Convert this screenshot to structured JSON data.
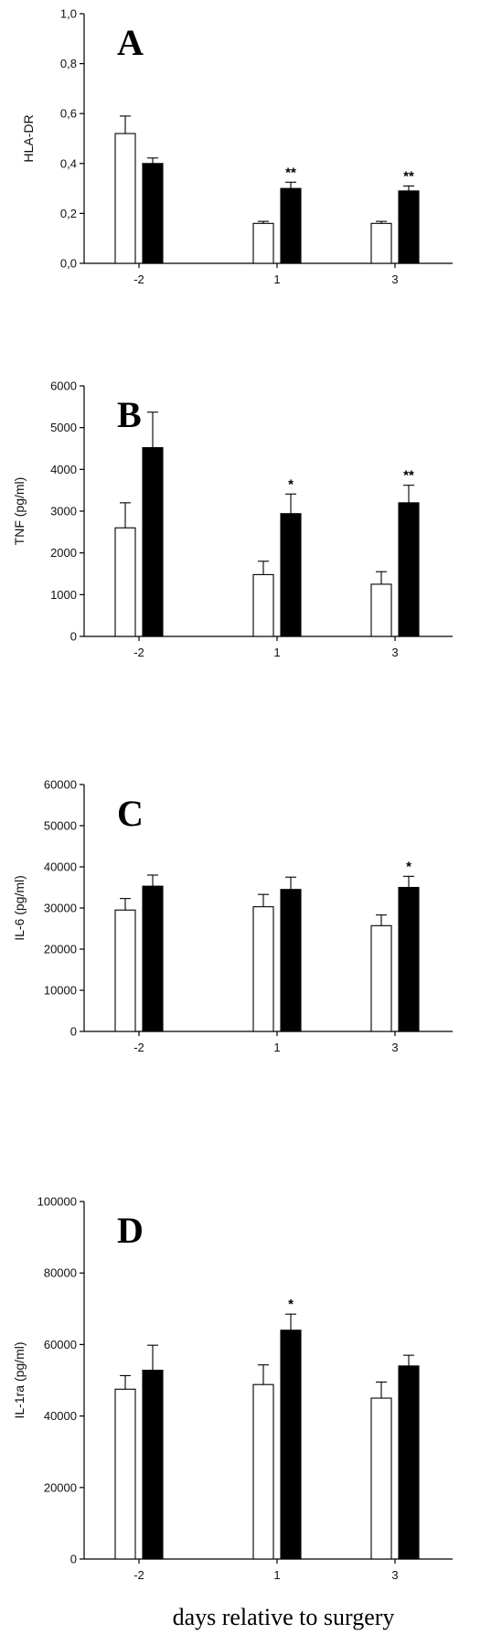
{
  "chart_data": [
    {
      "type": "bar",
      "panel_label": "A",
      "categories": [
        "-2",
        "1",
        "3"
      ],
      "ylabel": "HLA-DR",
      "ylim": [
        0,
        1.0
      ],
      "yticks": [
        "0,0",
        "0,2",
        "0,4",
        "0,6",
        "0,8",
        "1,0"
      ],
      "series": [
        {
          "style": "open",
          "values": [
            0.52,
            0.16,
            0.16
          ],
          "errors": [
            0.07,
            0.008,
            0.008
          ]
        },
        {
          "style": "filled",
          "values": [
            0.4,
            0.3,
            0.29
          ],
          "errors": [
            0.022,
            0.025,
            0.02
          ]
        }
      ],
      "annotations": [
        "",
        "**",
        "**"
      ]
    },
    {
      "type": "bar",
      "panel_label": "B",
      "categories": [
        "-2",
        "1",
        "3"
      ],
      "ylabel": "TNF (pg/ml)",
      "ylim": [
        0,
        6000
      ],
      "yticks": [
        "0",
        "1000",
        "2000",
        "3000",
        "4000",
        "5000",
        "6000"
      ],
      "series": [
        {
          "style": "open",
          "values": [
            2600,
            1480,
            1250
          ],
          "errors": [
            600,
            320,
            300
          ]
        },
        {
          "style": "filled",
          "values": [
            4520,
            2940,
            3200
          ],
          "errors": [
            850,
            470,
            420
          ]
        }
      ],
      "annotations": [
        "",
        "*",
        "**"
      ]
    },
    {
      "type": "bar",
      "panel_label": "C",
      "categories": [
        "-2",
        "1",
        "3"
      ],
      "ylabel": "IL-6 (pg/ml)",
      "ylim": [
        0,
        60000
      ],
      "yticks": [
        "0",
        "10000",
        "20000",
        "30000",
        "40000",
        "50000",
        "60000"
      ],
      "series": [
        {
          "style": "open",
          "values": [
            29500,
            30300,
            25700
          ],
          "errors": [
            2800,
            3000,
            2600
          ]
        },
        {
          "style": "filled",
          "values": [
            35300,
            34500,
            35000
          ],
          "errors": [
            2700,
            3000,
            2700
          ]
        }
      ],
      "annotations": [
        "",
        "",
        "*"
      ]
    },
    {
      "type": "bar",
      "panel_label": "D",
      "categories": [
        "-2",
        "1",
        "3"
      ],
      "ylabel": "IL-1ra (pg/ml)",
      "ylim": [
        0,
        100000
      ],
      "yticks": [
        "0",
        "20000",
        "40000",
        "60000",
        "80000",
        "100000"
      ],
      "series": [
        {
          "style": "open",
          "values": [
            47500,
            48800,
            45000
          ],
          "errors": [
            3800,
            5500,
            4500
          ]
        },
        {
          "style": "filled",
          "values": [
            52800,
            64000,
            54000
          ],
          "errors": [
            7000,
            4500,
            3000
          ]
        }
      ],
      "annotations": [
        "",
        "*",
        ""
      ]
    }
  ],
  "xlabel": "days relative to surgery"
}
